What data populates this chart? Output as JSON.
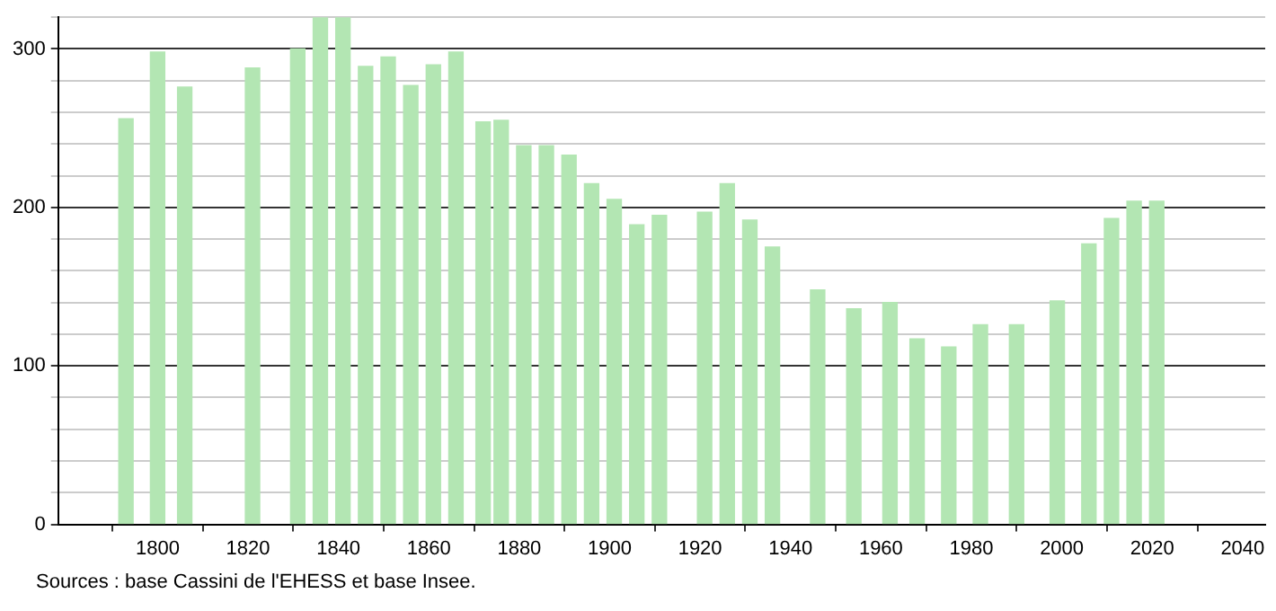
{
  "chart_data": {
    "type": "bar",
    "x": [
      1793,
      1800,
      1806,
      1821,
      1831,
      1836,
      1841,
      1846,
      1851,
      1856,
      1861,
      1866,
      1872,
      1876,
      1881,
      1886,
      1891,
      1896,
      1901,
      1906,
      1911,
      1921,
      1926,
      1931,
      1936,
      1946,
      1954,
      1962,
      1968,
      1975,
      1982,
      1990,
      1999,
      2006,
      2011,
      2016,
      2021
    ],
    "values": [
      256,
      298,
      276,
      288,
      300,
      320,
      320,
      289,
      295,
      277,
      290,
      298,
      254,
      255,
      239,
      239,
      233,
      215,
      205,
      189,
      195,
      197,
      215,
      192,
      175,
      148,
      136,
      140,
      117,
      112,
      126,
      126,
      141,
      177,
      193,
      204,
      204
    ],
    "color": "#b3e6b3",
    "xlim": [
      1778,
      2045
    ],
    "xticks": [
      1800,
      1820,
      1840,
      1860,
      1880,
      1900,
      1920,
      1940,
      1960,
      1980,
      2000,
      2020,
      2040
    ],
    "ylim": [
      0,
      320
    ],
    "yticks": [
      0,
      {
        "value": 20,
        "label": null
      },
      {
        "value": 40,
        "label": null
      },
      {
        "value": 60,
        "label": null
      },
      {
        "value": 80,
        "label": null
      },
      100,
      {
        "value": 120,
        "label": null
      },
      {
        "value": 140,
        "label": null
      },
      {
        "value": 160,
        "label": null
      },
      {
        "value": 180,
        "label": null
      },
      200,
      {
        "value": 220,
        "label": null
      },
      {
        "value": 240,
        "label": null
      },
      {
        "value": 260,
        "label": null
      },
      {
        "value": 280,
        "label": null
      },
      300,
      {
        "value": 320,
        "label": null
      }
    ],
    "grid": "y",
    "annotations": [
      "Sources : base Cassini de l'EHESS et base Insee."
    ]
  }
}
